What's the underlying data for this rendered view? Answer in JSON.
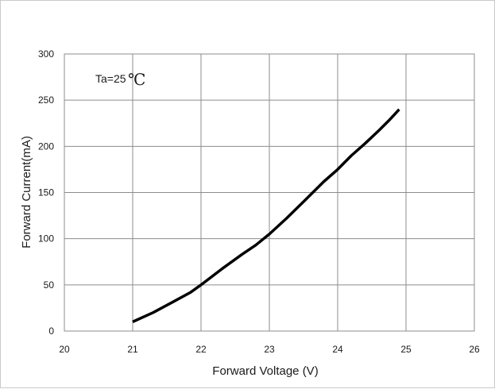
{
  "chart_data": {
    "type": "line",
    "title": "",
    "xlabel": "Forward  Voltage (V)",
    "ylabel": "Forward Current(mA)",
    "xlim": [
      20,
      26
    ],
    "ylim": [
      0,
      300
    ],
    "x_ticks": [
      "20",
      "21",
      "22",
      "23",
      "24",
      "25",
      "26"
    ],
    "y_ticks": [
      "0",
      "50",
      "100",
      "150",
      "200",
      "250",
      "300"
    ],
    "grid": true,
    "legend": "none",
    "annotation": {
      "text": "Ta=25",
      "unit": "℃"
    },
    "series": [
      {
        "color": "#000000",
        "x": [
          21.0,
          21.3,
          21.6,
          21.85,
          22.0,
          22.3,
          22.6,
          22.8,
          23.0,
          23.25,
          23.5,
          23.8,
          24.0,
          24.2,
          24.4,
          24.6,
          24.75,
          24.9
        ],
        "y": [
          10,
          20,
          32,
          42,
          50,
          67,
          83,
          93,
          105,
          122,
          140,
          162,
          175,
          190,
          203,
          217,
          228,
          240
        ]
      }
    ]
  }
}
